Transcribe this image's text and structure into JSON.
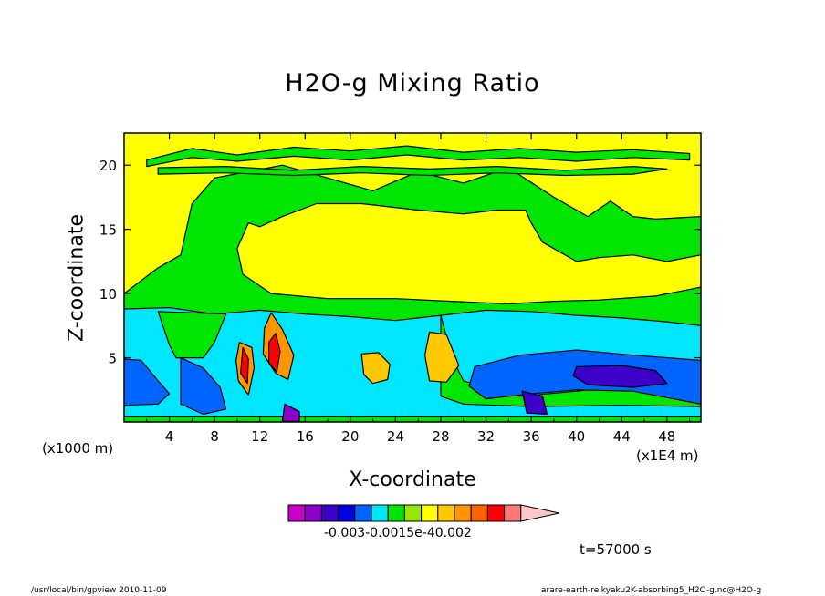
{
  "chart_data": {
    "type": "heatmap",
    "title": "H2O-g Mixing Ratio",
    "xlabel": "X-coordinate",
    "ylabel": "Z-coordinate",
    "x_unit_note_left": "(x1000 m)",
    "x_unit_note_right": "(x1E4 m)",
    "x_ticks": [
      4,
      8,
      12,
      16,
      20,
      24,
      28,
      32,
      36,
      40,
      44,
      48
    ],
    "y_ticks": [
      5,
      10,
      15,
      20
    ],
    "xlim": [
      0,
      51
    ],
    "ylim": [
      0,
      22.5
    ],
    "colorbar_labels": "-0.003-0.0015e-40.002",
    "colorbar_colors": [
      "#c800c8",
      "#8c00c8",
      "#3c00c8",
      "#0000dc",
      "#0064ff",
      "#00e6ff",
      "#00e600",
      "#96e600",
      "#ffff00",
      "#ffc800",
      "#ff9600",
      "#ff6400",
      "#ff0000",
      "#ff7878",
      "#ffc8c8"
    ],
    "background_level_color": "#ffff00",
    "regions": [
      {
        "name": "green-mid-layer",
        "color": "#00e600",
        "points": [
          [
            0,
            10
          ],
          [
            3,
            12
          ],
          [
            5,
            13
          ],
          [
            6,
            17
          ],
          [
            8,
            19
          ],
          [
            14,
            20
          ],
          [
            18,
            19
          ],
          [
            22,
            18
          ],
          [
            26,
            19.5
          ],
          [
            30,
            18.6
          ],
          [
            34,
            19.8
          ],
          [
            38,
            17.5
          ],
          [
            41,
            16
          ],
          [
            43,
            17.2
          ],
          [
            45,
            16
          ],
          [
            47,
            15.8
          ],
          [
            51,
            16
          ],
          [
            51,
            0
          ],
          [
            0,
            0
          ]
        ]
      },
      {
        "name": "yellow-upper-dome",
        "color": "#ffff00",
        "points": [
          [
            10,
            13.5
          ],
          [
            11,
            15.5
          ],
          [
            12,
            15.2
          ],
          [
            14,
            16
          ],
          [
            17,
            17
          ],
          [
            21,
            17
          ],
          [
            26,
            16.5
          ],
          [
            30,
            16.2
          ],
          [
            33,
            16.5
          ],
          [
            35.5,
            16.5
          ],
          [
            36,
            15.5
          ],
          [
            37,
            14
          ],
          [
            38,
            13.5
          ],
          [
            40,
            12.5
          ],
          [
            42,
            12.8
          ],
          [
            45,
            13
          ],
          [
            48,
            12.5
          ],
          [
            51,
            13
          ],
          [
            51,
            10.5
          ],
          [
            47,
            9.8
          ],
          [
            42,
            9.5
          ],
          [
            38,
            9.4
          ],
          [
            34,
            9.2
          ],
          [
            29,
            9.4
          ],
          [
            24,
            9.6
          ],
          [
            18,
            9.6
          ],
          [
            13,
            10
          ],
          [
            10.5,
            11.5
          ]
        ]
      },
      {
        "name": "green-upper-streak-1",
        "color": "#00e600",
        "points": [
          [
            2,
            20.4
          ],
          [
            6,
            21.3
          ],
          [
            10,
            20.8
          ],
          [
            15,
            21.4
          ],
          [
            20,
            21.1
          ],
          [
            25,
            21.5
          ],
          [
            30,
            21.0
          ],
          [
            35,
            21.3
          ],
          [
            40,
            21.0
          ],
          [
            45,
            21.2
          ],
          [
            50,
            20.9
          ],
          [
            50,
            20.4
          ],
          [
            45,
            20.6
          ],
          [
            40,
            20.3
          ],
          [
            35,
            20.6
          ],
          [
            30,
            20.4
          ],
          [
            25,
            20.8
          ],
          [
            20,
            20.4
          ],
          [
            15,
            20.7
          ],
          [
            10,
            20.3
          ],
          [
            6,
            20.6
          ],
          [
            2,
            19.9
          ]
        ]
      },
      {
        "name": "green-upper-streak-2",
        "color": "#00e600",
        "points": [
          [
            3,
            19.8
          ],
          [
            9,
            19.9
          ],
          [
            15,
            19.6
          ],
          [
            21,
            19.9
          ],
          [
            27,
            19.7
          ],
          [
            33,
            19.9
          ],
          [
            39,
            19.6
          ],
          [
            45,
            19.9
          ],
          [
            48,
            19.7
          ],
          [
            45,
            19.3
          ],
          [
            39,
            19.2
          ],
          [
            33,
            19.4
          ],
          [
            27,
            19.2
          ],
          [
            21,
            19.4
          ],
          [
            15,
            19.2
          ],
          [
            9,
            19.4
          ],
          [
            3,
            19.3
          ]
        ]
      },
      {
        "name": "cyan-lower-layer",
        "color": "#00e6ff",
        "points": [
          [
            0,
            0.4
          ],
          [
            0,
            8.8
          ],
          [
            4,
            8.9
          ],
          [
            8,
            8.4
          ],
          [
            12,
            8.7
          ],
          [
            16,
            8.4
          ],
          [
            20,
            8.2
          ],
          [
            24,
            7.9
          ],
          [
            28,
            8.3
          ],
          [
            32,
            8.7
          ],
          [
            36,
            8.6
          ],
          [
            40,
            8.3
          ],
          [
            44,
            8.1
          ],
          [
            48,
            7.8
          ],
          [
            51,
            7.5
          ],
          [
            51,
            0.4
          ]
        ]
      },
      {
        "name": "green-lower-pockets",
        "color": "#00e600",
        "points": [
          [
            3,
            8.6
          ],
          [
            4,
            6
          ],
          [
            4.6,
            5
          ],
          [
            7,
            5
          ],
          [
            8,
            6.2
          ],
          [
            9,
            8.4
          ]
        ]
      },
      {
        "name": "green-right-pocket",
        "color": "#00e600",
        "points": [
          [
            28,
            8.3
          ],
          [
            29,
            5
          ],
          [
            30,
            3.2
          ],
          [
            35,
            2
          ],
          [
            40,
            2.4
          ],
          [
            44,
            2.8
          ],
          [
            51,
            2
          ],
          [
            51,
            1.2
          ],
          [
            44,
            1.3
          ],
          [
            36,
            1.2
          ],
          [
            30,
            1.4
          ],
          [
            28,
            2
          ]
        ]
      },
      {
        "name": "blue-lower-left",
        "color": "#0064ff",
        "points": [
          [
            0,
            4.9
          ],
          [
            1.5,
            4.8
          ],
          [
            3,
            3.2
          ],
          [
            4,
            2.2
          ],
          [
            3,
            1.4
          ],
          [
            0,
            1.3
          ]
        ]
      },
      {
        "name": "blue-lower-center",
        "color": "#0064ff",
        "points": [
          [
            5,
            5
          ],
          [
            7,
            4.2
          ],
          [
            8.5,
            2.7
          ],
          [
            9,
            1
          ],
          [
            7,
            0.6
          ],
          [
            5,
            1.4
          ]
        ]
      },
      {
        "name": "blue-lower-right",
        "color": "#0064ff",
        "points": [
          [
            31,
            4.3
          ],
          [
            35,
            5.2
          ],
          [
            40,
            5.6
          ],
          [
            45,
            5.2
          ],
          [
            51,
            4.8
          ],
          [
            51,
            1.4
          ],
          [
            45,
            2.4
          ],
          [
            40,
            2.5
          ],
          [
            36,
            2.2
          ],
          [
            32,
            1.8
          ],
          [
            30.5,
            2.8
          ]
        ]
      },
      {
        "name": "dark-blue-core-right",
        "color": "#3c00c8",
        "points": [
          [
            40,
            4.3
          ],
          [
            44,
            4.4
          ],
          [
            47,
            4
          ],
          [
            48,
            3
          ],
          [
            45,
            2.7
          ],
          [
            41,
            2.9
          ],
          [
            39.7,
            3.6
          ]
        ]
      },
      {
        "name": "orange-convective-cell",
        "color": "#ff9600",
        "points": [
          [
            13,
            8.5
          ],
          [
            14,
            7.2
          ],
          [
            15,
            5.2
          ],
          [
            14.5,
            3.3
          ],
          [
            13.4,
            3.8
          ],
          [
            12.3,
            5.3
          ],
          [
            12.4,
            7.3
          ]
        ]
      },
      {
        "name": "red-convective-core",
        "color": "#ff0000",
        "points": [
          [
            13.4,
            6.9
          ],
          [
            13.8,
            5.5
          ],
          [
            13.5,
            3.9
          ],
          [
            12.8,
            4.6
          ],
          [
            12.8,
            6.2
          ]
        ]
      },
      {
        "name": "orange-convective-left",
        "color": "#ff9600",
        "points": [
          [
            10.2,
            6.2
          ],
          [
            11.3,
            5.8
          ],
          [
            11.5,
            4.2
          ],
          [
            11,
            2.1
          ],
          [
            10.1,
            3.2
          ],
          [
            9.9,
            4.8
          ]
        ]
      },
      {
        "name": "red-convective-left",
        "color": "#ff0000",
        "points": [
          [
            10.5,
            5.8
          ],
          [
            11,
            4.9
          ],
          [
            10.9,
            3
          ],
          [
            10.3,
            3.8
          ]
        ]
      },
      {
        "name": "orange-cell-center",
        "color": "#ffc800",
        "points": [
          [
            21,
            5.3
          ],
          [
            22.5,
            5.4
          ],
          [
            23.5,
            4.5
          ],
          [
            23.3,
            3.3
          ],
          [
            22,
            3
          ],
          [
            21.2,
            3.7
          ]
        ]
      },
      {
        "name": "orange-cell-right",
        "color": "#ffc800",
        "points": [
          [
            27,
            7
          ],
          [
            28.5,
            6.8
          ],
          [
            29.6,
            4.4
          ],
          [
            28.5,
            3.1
          ],
          [
            27,
            3.2
          ],
          [
            26.6,
            5.2
          ]
        ]
      },
      {
        "name": "purple-floor-core",
        "color": "#8c00c8",
        "points": [
          [
            14.2,
            1.4
          ],
          [
            15.5,
            0.8
          ],
          [
            15.5,
            0.05
          ],
          [
            14,
            0.05
          ]
        ]
      },
      {
        "name": "dark-blue-floor-right",
        "color": "#3c00c8",
        "points": [
          [
            35.2,
            2.4
          ],
          [
            37,
            2
          ],
          [
            37.4,
            0.6
          ],
          [
            35.6,
            0.7
          ]
        ]
      }
    ]
  },
  "labels": {
    "timestamp": "t=57000 s",
    "footer_left": "/usr/local/bin/gpview  2010-11-09",
    "footer_right": "arare-earth-reikyaku2K-absorbing5_H2O-g.nc@H2O-g"
  }
}
